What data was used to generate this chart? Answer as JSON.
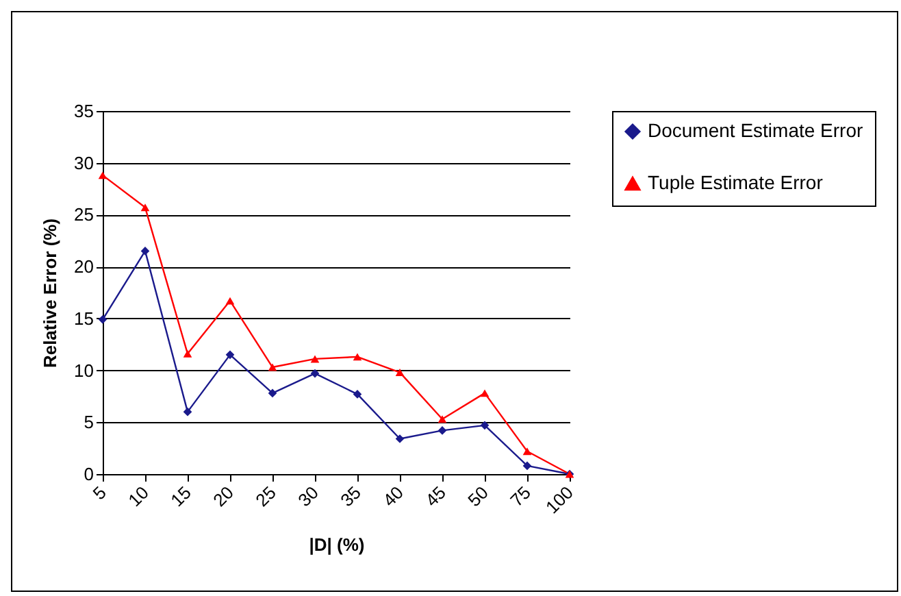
{
  "chart_data": {
    "type": "line",
    "xlabel": "|D| (%)",
    "ylabel": "Relative Error (%)",
    "categories": [
      "5",
      "10",
      "15",
      "20",
      "25",
      "30",
      "35",
      "40",
      "45",
      "50",
      "75",
      "100"
    ],
    "series": [
      {
        "name": "Document Estimate Error",
        "color": "#1a1a8c",
        "marker": "diamond",
        "values": [
          14.9,
          21.5,
          6.0,
          11.5,
          7.8,
          9.7,
          7.7,
          3.4,
          4.2,
          4.7,
          0.8,
          0
        ]
      },
      {
        "name": "Tuple Estimate Error",
        "color": "#ff0000",
        "marker": "triangle",
        "values": [
          28.8,
          25.7,
          11.6,
          16.7,
          10.3,
          11.1,
          11.3,
          9.8,
          5.3,
          7.8,
          2.2,
          0
        ]
      }
    ],
    "ylim": [
      0,
      35
    ],
    "yticks": [
      0,
      5,
      10,
      15,
      20,
      25,
      30,
      35
    ],
    "grid": "y",
    "legend": "right"
  }
}
